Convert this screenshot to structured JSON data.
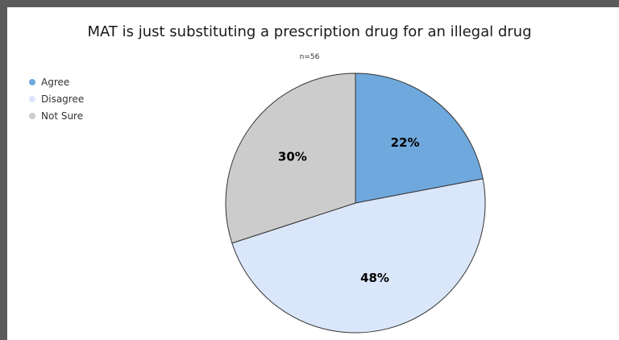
{
  "chart_data": {
    "type": "pie",
    "title": "MAT is just substituting a prescription drug for an illegal drug",
    "subtitle": "n=56",
    "categories": [
      "Agree",
      "Disagree",
      "Not Sure"
    ],
    "values": [
      22,
      48,
      30
    ],
    "data_labels": [
      "22%",
      "48%",
      "30%"
    ],
    "colors": [
      "#6fa8dc",
      "#dae6f9",
      "#cccccc"
    ],
    "legend_position": "top-left"
  }
}
